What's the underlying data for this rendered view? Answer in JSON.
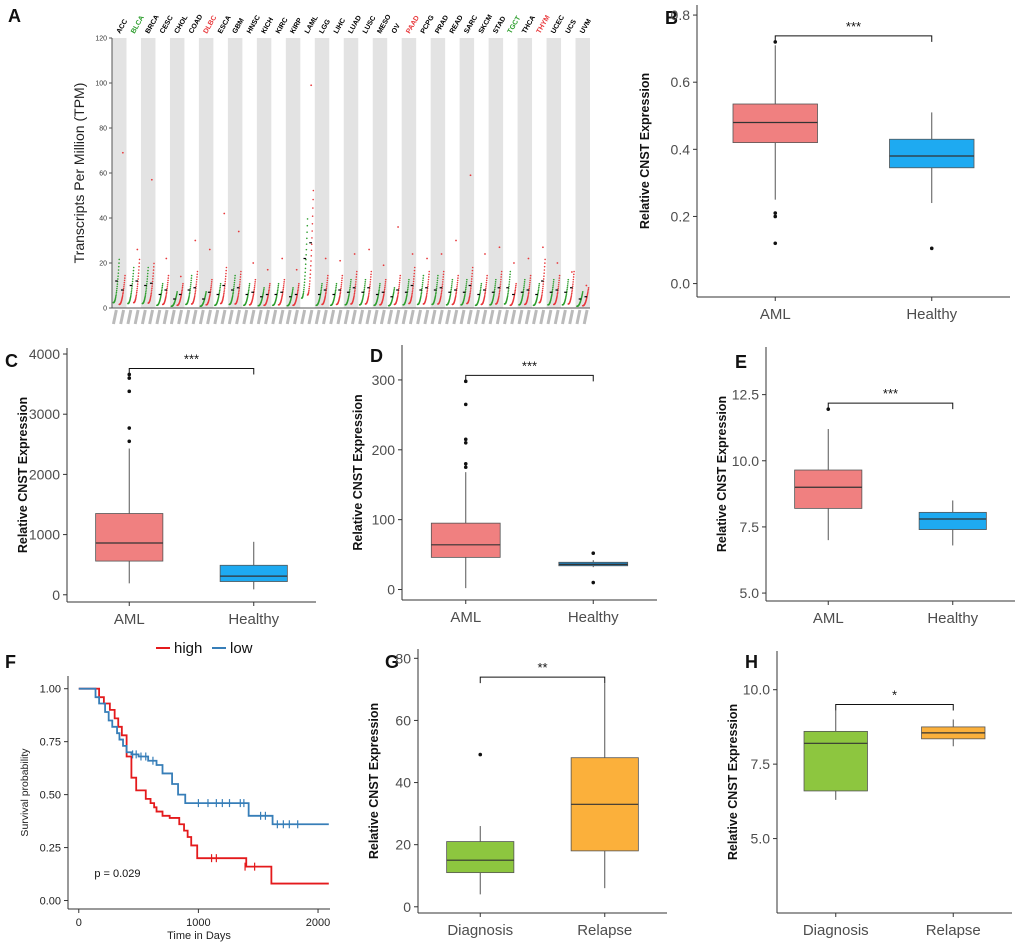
{
  "figure": {
    "chart_data": [
      {
        "panel": "A",
        "type": "scatter",
        "ylabel": "Transcripts Per Million (TPM)",
        "xlabel": "",
        "ylim": [
          0,
          120
        ],
        "yticks": [
          "0",
          "20",
          "40",
          "60",
          "80",
          "100",
          "120"
        ],
        "cancers": [
          {
            "name": "ACC",
            "color": "#000000",
            "tumor": 8,
            "normal": 12,
            "max": 69
          },
          {
            "name": "BLCA",
            "color": "#2e9e2e",
            "tumor": 12,
            "normal": 10,
            "max": 26
          },
          {
            "name": "BRCA",
            "color": "#000000",
            "tumor": 11,
            "normal": 10,
            "max": 57
          },
          {
            "name": "CESC",
            "color": "#000000",
            "tumor": 8,
            "normal": 6,
            "max": 22
          },
          {
            "name": "CHOL",
            "color": "#000000",
            "tumor": 6,
            "normal": 4,
            "max": 14
          },
          {
            "name": "COAD",
            "color": "#000000",
            "tumor": 9,
            "normal": 8,
            "max": 30
          },
          {
            "name": "DLBC",
            "color": "#e8383b",
            "tumor": 7,
            "normal": 4,
            "max": 26
          },
          {
            "name": "ESCA",
            "color": "#000000",
            "tumor": 10,
            "normal": 6,
            "max": 42
          },
          {
            "name": "GBM",
            "color": "#000000",
            "tumor": 9,
            "normal": 8,
            "max": 34
          },
          {
            "name": "HNSC",
            "color": "#000000",
            "tumor": 7,
            "normal": 6,
            "max": 20
          },
          {
            "name": "KICH",
            "color": "#000000",
            "tumor": 6,
            "normal": 5,
            "max": 17
          },
          {
            "name": "KIRC",
            "color": "#000000",
            "tumor": 7,
            "normal": 6,
            "max": 22
          },
          {
            "name": "KIRP",
            "color": "#000000",
            "tumor": 6,
            "normal": 5,
            "max": 17
          },
          {
            "name": "LAML",
            "color": "#000000",
            "tumor": 29,
            "normal": 22,
            "max": 99
          },
          {
            "name": "LGG",
            "color": "#000000",
            "tumor": 8,
            "normal": 6,
            "max": 22
          },
          {
            "name": "LIHC",
            "color": "#000000",
            "tumor": 8,
            "normal": 6,
            "max": 21
          },
          {
            "name": "LUAD",
            "color": "#000000",
            "tumor": 9,
            "normal": 7,
            "max": 24
          },
          {
            "name": "LUSC",
            "color": "#000000",
            "tumor": 9,
            "normal": 7,
            "max": 26
          },
          {
            "name": "MESO",
            "color": "#000000",
            "tumor": 7,
            "normal": 6,
            "max": 19
          },
          {
            "name": "OV",
            "color": "#000000",
            "tumor": 8,
            "normal": 5,
            "max": 36
          },
          {
            "name": "PAAD",
            "color": "#e8383b",
            "tumor": 10,
            "normal": 7,
            "max": 24
          },
          {
            "name": "PCPG",
            "color": "#000000",
            "tumor": 9,
            "normal": 8,
            "max": 22
          },
          {
            "name": "PRAD",
            "color": "#000000",
            "tumor": 9,
            "normal": 8,
            "max": 24
          },
          {
            "name": "READ",
            "color": "#000000",
            "tumor": 8,
            "normal": 7,
            "max": 30
          },
          {
            "name": "SARC",
            "color": "#000000",
            "tumor": 10,
            "normal": 7,
            "max": 59
          },
          {
            "name": "SKCM",
            "color": "#000000",
            "tumor": 8,
            "normal": 6,
            "max": 24
          },
          {
            "name": "STAD",
            "color": "#000000",
            "tumor": 9,
            "normal": 7,
            "max": 27
          },
          {
            "name": "TGCT",
            "color": "#2e9e2e",
            "tumor": 6,
            "normal": 9,
            "max": 20
          },
          {
            "name": "THCA",
            "color": "#000000",
            "tumor": 8,
            "normal": 7,
            "max": 22
          },
          {
            "name": "THYM",
            "color": "#e8383b",
            "tumor": 12,
            "normal": 6,
            "max": 27
          },
          {
            "name": "UCEC",
            "color": "#000000",
            "tumor": 8,
            "normal": 7,
            "max": 20
          },
          {
            "name": "UCS",
            "color": "#000000",
            "tumor": 9,
            "normal": 7,
            "max": 16
          },
          {
            "name": "UVM",
            "color": "#000000",
            "tumor": 5,
            "normal": 4,
            "max": 10
          }
        ],
        "colors": {
          "tumor": "#e8383b",
          "normal": "#2e9e2e",
          "band": "#e3e3e3"
        }
      },
      {
        "panel": "B",
        "type": "box",
        "ylabel": "Relative CNST Expression",
        "xlabel": "",
        "ylim": [
          -0.04,
          0.83
        ],
        "yticks": [
          0.0,
          0.2,
          0.4,
          0.6,
          0.8
        ],
        "tick_labels": [
          "0.0",
          "0.2",
          "0.4",
          "0.6",
          "0.8"
        ],
        "significance": "***",
        "groups": [
          {
            "name": "AML",
            "color": "#f08080",
            "min": 0.25,
            "q1": 0.42,
            "median": 0.48,
            "q3": 0.535,
            "max": 0.71,
            "outliers": [
              0.12,
              0.2,
              0.21,
              0.72
            ]
          },
          {
            "name": "Healthy",
            "color": "#1eaaf1",
            "min": 0.24,
            "q1": 0.345,
            "median": 0.38,
            "q3": 0.43,
            "max": 0.51,
            "outliers": [
              0.105
            ]
          }
        ]
      },
      {
        "panel": "C",
        "type": "box",
        "ylabel": "Relative CNST Expression",
        "xlabel": "",
        "ylim": [
          -120,
          4100
        ],
        "yticks": [
          0,
          1000,
          2000,
          3000,
          4000
        ],
        "tick_labels": [
          "0",
          "1000",
          "2000",
          "3000",
          "4000"
        ],
        "significance": "***",
        "groups": [
          {
            "name": "AML",
            "color": "#f08080",
            "min": 190,
            "q1": 560,
            "median": 860,
            "q3": 1350,
            "max": 2430,
            "outliers": [
              2550,
              2770,
              3380,
              3600,
              3660
            ]
          },
          {
            "name": "Healthy",
            "color": "#1eaaf1",
            "min": 90,
            "q1": 220,
            "median": 310,
            "q3": 490,
            "max": 880,
            "outliers": []
          }
        ]
      },
      {
        "panel": "D",
        "type": "box",
        "ylabel": "Relative CNST Expression",
        "xlabel": "",
        "ylim": [
          -15,
          350
        ],
        "yticks": [
          0,
          100,
          200,
          300
        ],
        "tick_labels": [
          "0",
          "100",
          "200",
          "300"
        ],
        "significance": "***",
        "groups": [
          {
            "name": "AML",
            "color": "#f08080",
            "min": 2,
            "q1": 46,
            "median": 64,
            "q3": 95,
            "max": 168,
            "outliers": [
              175,
              180,
              210,
              215,
              265,
              298
            ]
          },
          {
            "name": "Healthy",
            "color": "#1e88c8",
            "min": 32,
            "q1": 34,
            "median": 36,
            "q3": 39,
            "max": 42,
            "outliers": [
              10,
              52
            ]
          }
        ]
      },
      {
        "panel": "E",
        "type": "box",
        "ylabel": "Relative CNST Expression",
        "xlabel": "",
        "ylim": [
          4.7,
          14.3
        ],
        "yticks": [
          5.0,
          7.5,
          10.0,
          12.5
        ],
        "tick_labels": [
          "5.0",
          "7.5",
          "10.0",
          "12.5"
        ],
        "significance": "***",
        "groups": [
          {
            "name": "AML",
            "color": "#f08080",
            "min": 7.0,
            "q1": 8.2,
            "median": 9.0,
            "q3": 9.65,
            "max": 11.2,
            "outliers": [
              11.95
            ]
          },
          {
            "name": "Healthy",
            "color": "#1eaaf1",
            "min": 6.8,
            "q1": 7.4,
            "median": 7.8,
            "q3": 8.05,
            "max": 8.5,
            "outliers": []
          }
        ]
      },
      {
        "panel": "F",
        "type": "line",
        "title": "",
        "xlabel": "Time in Days",
        "ylabel": "Survival probability",
        "xlim": [
          -90,
          2100
        ],
        "ylim": [
          -0.04,
          1.06
        ],
        "xticks": [
          0,
          1000,
          2000
        ],
        "xtick_labels": [
          "0",
          "1000",
          "2000"
        ],
        "yticks": [
          0.0,
          0.25,
          0.5,
          0.75,
          1.0
        ],
        "ytick_labels": [
          "0.00",
          "0.25",
          "0.50",
          "0.75",
          "1.00"
        ],
        "annotation": "p = 0.029",
        "legend": {
          "entries": [
            "high",
            "low"
          ]
        },
        "series": [
          {
            "name": "high",
            "color": "#e41a1c",
            "steps": [
              [
                0,
                1.0
              ],
              [
                170,
                0.96
              ],
              [
                210,
                0.93
              ],
              [
                260,
                0.9
              ],
              [
                300,
                0.86
              ],
              [
                330,
                0.82
              ],
              [
                360,
                0.78
              ],
              [
                400,
                0.68
              ],
              [
                440,
                0.58
              ],
              [
                480,
                0.52
              ],
              [
                560,
                0.48
              ],
              [
                600,
                0.46
              ],
              [
                630,
                0.44
              ],
              [
                650,
                0.42
              ],
              [
                700,
                0.4
              ],
              [
                760,
                0.39
              ],
              [
                840,
                0.36
              ],
              [
                880,
                0.33
              ],
              [
                910,
                0.3
              ],
              [
                940,
                0.26
              ],
              [
                990,
                0.2
              ],
              [
                1400,
                0.16
              ],
              [
                1610,
                0.08
              ],
              [
                2090,
                0.08
              ]
            ],
            "censor": [
              [
                1110,
                0.2
              ],
              [
                1150,
                0.2
              ],
              [
                1390,
                0.16
              ],
              [
                1470,
                0.16
              ]
            ]
          },
          {
            "name": "low",
            "color": "#377eb8",
            "steps": [
              [
                0,
                1.0
              ],
              [
                140,
                0.96
              ],
              [
                170,
                0.93
              ],
              [
                220,
                0.89
              ],
              [
                250,
                0.85
              ],
              [
                280,
                0.82
              ],
              [
                320,
                0.79
              ],
              [
                340,
                0.76
              ],
              [
                370,
                0.73
              ],
              [
                400,
                0.7
              ],
              [
                440,
                0.69
              ],
              [
                500,
                0.68
              ],
              [
                580,
                0.66
              ],
              [
                650,
                0.64
              ],
              [
                700,
                0.6
              ],
              [
                780,
                0.55
              ],
              [
                830,
                0.5
              ],
              [
                890,
                0.46
              ],
              [
                1420,
                0.4
              ],
              [
                1620,
                0.36
              ],
              [
                2090,
                0.36
              ]
            ],
            "censor": [
              [
                450,
                0.69
              ],
              [
                480,
                0.69
              ],
              [
                520,
                0.68
              ],
              [
                560,
                0.68
              ],
              [
                620,
                0.66
              ],
              [
                1000,
                0.46
              ],
              [
                1080,
                0.46
              ],
              [
                1150,
                0.46
              ],
              [
                1200,
                0.46
              ],
              [
                1260,
                0.46
              ],
              [
                1350,
                0.46
              ],
              [
                1380,
                0.46
              ],
              [
                1520,
                0.4
              ],
              [
                1560,
                0.4
              ],
              [
                1660,
                0.36
              ],
              [
                1710,
                0.36
              ],
              [
                1760,
                0.36
              ],
              [
                1830,
                0.36
              ]
            ]
          }
        ]
      },
      {
        "panel": "G",
        "type": "box",
        "ylabel": "Relative CNST Expression",
        "xlabel": "",
        "ylim": [
          -2,
          83
        ],
        "yticks": [
          0,
          20,
          40,
          60,
          80
        ],
        "tick_labels": [
          "0",
          "20",
          "40",
          "60",
          "80"
        ],
        "significance": "**",
        "groups": [
          {
            "name": "Diagnosis",
            "color": "#8dc63f",
            "min": 4,
            "q1": 11,
            "median": 15,
            "q3": 21,
            "max": 26,
            "outliers": [
              49
            ]
          },
          {
            "name": "Relapse",
            "color": "#fbb03b",
            "min": 6,
            "q1": 18,
            "median": 33,
            "q3": 48,
            "max": 72,
            "outliers": []
          }
        ]
      },
      {
        "panel": "H",
        "type": "box",
        "ylabel": "Relative CNST Expression",
        "xlabel": "",
        "ylim": [
          2.5,
          11.3
        ],
        "yticks": [
          5.0,
          7.5,
          10.0
        ],
        "tick_labels": [
          "5.0",
          "7.5",
          "10.0"
        ],
        "significance": "*",
        "groups": [
          {
            "name": "Diagnosis",
            "color": "#8dc63f",
            "min": 6.3,
            "q1": 6.6,
            "median": 8.2,
            "q3": 8.6,
            "max": 9.3,
            "outliers": []
          },
          {
            "name": "Relapse",
            "color": "#fbb03b",
            "min": 8.1,
            "q1": 8.35,
            "median": 8.55,
            "q3": 8.75,
            "max": 9.0,
            "outliers": []
          }
        ]
      }
    ]
  }
}
